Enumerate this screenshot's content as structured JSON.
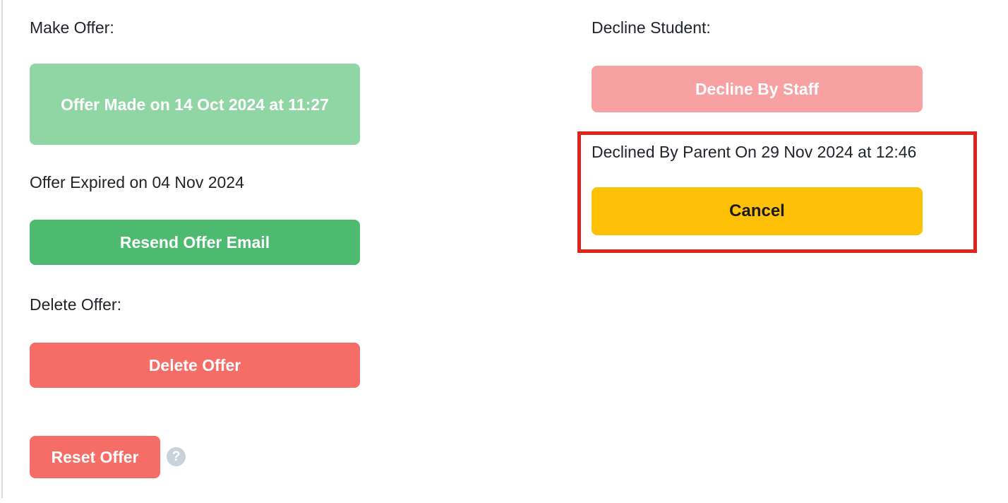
{
  "left_panel": {
    "make_offer_label": "Make Offer:",
    "offer_made_button_label": "Offer Made on 14 Oct 2024 at 11:27",
    "offer_expired_text": "Offer Expired on 04 Nov 2024",
    "resend_button_label": "Resend Offer Email",
    "delete_offer_label": "Delete Offer:",
    "delete_button_label": "Delete Offer",
    "reset_button_label": "Reset Offer",
    "help_icon_glyph": "?"
  },
  "right_panel": {
    "decline_student_label": "Decline Student:",
    "decline_by_staff_button_label": "Decline By Staff",
    "declined_status_text": "Declined By Parent On 29 Nov 2024 at 12:46",
    "cancel_button_label": "Cancel"
  },
  "colors": {
    "offer_made_bg": "#90d5a4",
    "resend_bg": "#4dba70",
    "danger_bg": "#f66d68",
    "decline_staff_bg": "#f8a1a2",
    "cancel_bg": "#ffc107",
    "highlight_border": "#e0241c",
    "help_icon_bg": "#c9d2da",
    "text": "#212529"
  }
}
